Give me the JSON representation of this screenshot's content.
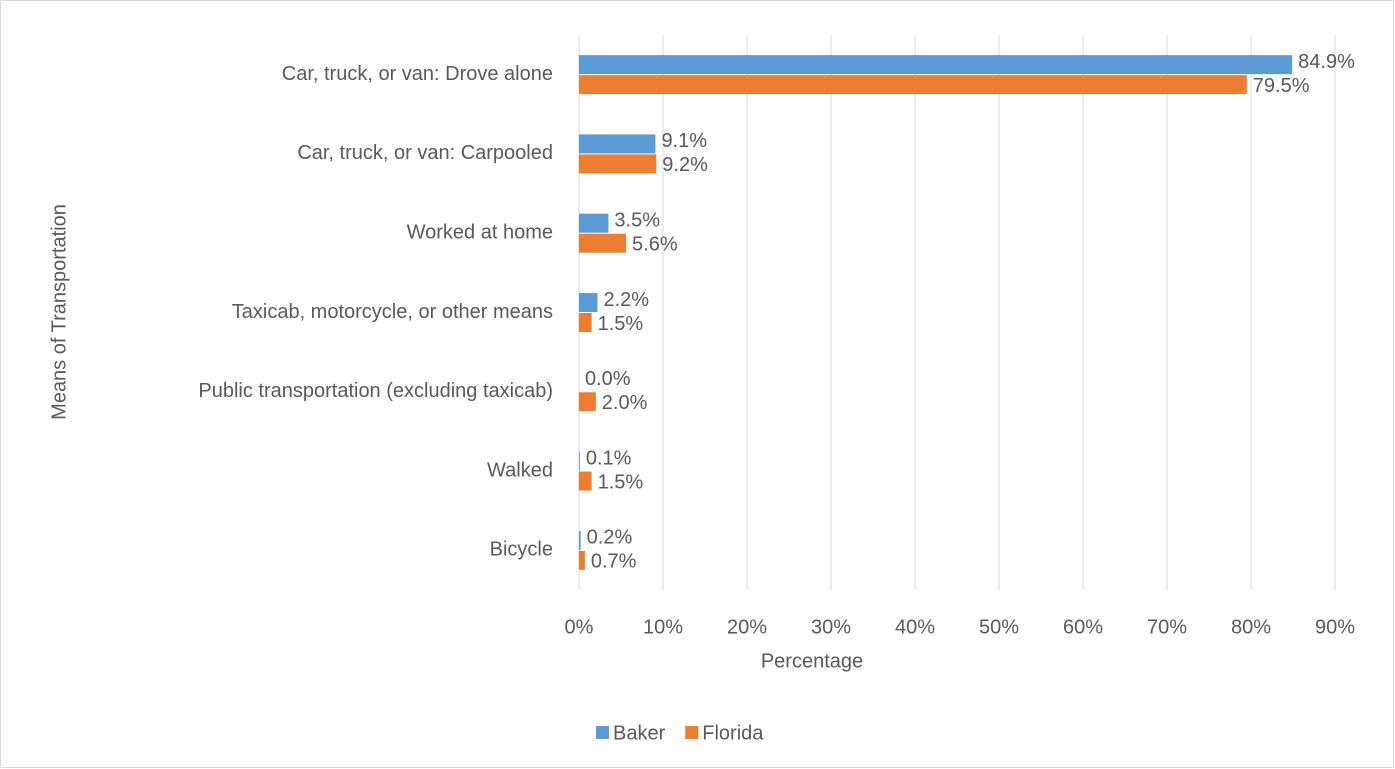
{
  "chart_data": {
    "type": "hbar",
    "xlabel": "Percentage",
    "ylabel": "Means of Transportation",
    "categories": [
      "Car, truck, or van: Drove alone",
      "Car, truck, or van: Carpooled",
      "Worked at home",
      "Taxicab, motorcycle, or other means",
      "Public transportation (excluding taxicab)",
      "Walked",
      "Bicycle"
    ],
    "series": [
      {
        "name": "Baker",
        "color": "#5b9bd5",
        "values": [
          84.9,
          9.1,
          3.5,
          2.2,
          0.0,
          0.1,
          0.2
        ],
        "value_labels": [
          "84.9%",
          "9.1%",
          "3.5%",
          "2.2%",
          "0.0%",
          "0.1%",
          "0.2%"
        ]
      },
      {
        "name": "Florida",
        "color": "#ed7d31",
        "values": [
          79.5,
          9.2,
          5.6,
          1.5,
          2.0,
          1.5,
          0.7
        ],
        "value_labels": [
          "79.5%",
          "9.2%",
          "5.6%",
          "1.5%",
          "2.0%",
          "1.5%",
          "0.7%"
        ]
      }
    ],
    "xlim": [
      0,
      90
    ],
    "xticks": [
      {
        "value": 0,
        "label": "0%"
      },
      {
        "value": 10,
        "label": "10%"
      },
      {
        "value": 20,
        "label": "20%"
      },
      {
        "value": 30,
        "label": "30%"
      },
      {
        "value": 40,
        "label": "40%"
      },
      {
        "value": 50,
        "label": "50%"
      },
      {
        "value": 60,
        "label": "60%"
      },
      {
        "value": 70,
        "label": "70%"
      },
      {
        "value": 80,
        "label": "80%"
      },
      {
        "value": 90,
        "label": "90%"
      }
    ],
    "grid": true,
    "legend": "bottom"
  }
}
